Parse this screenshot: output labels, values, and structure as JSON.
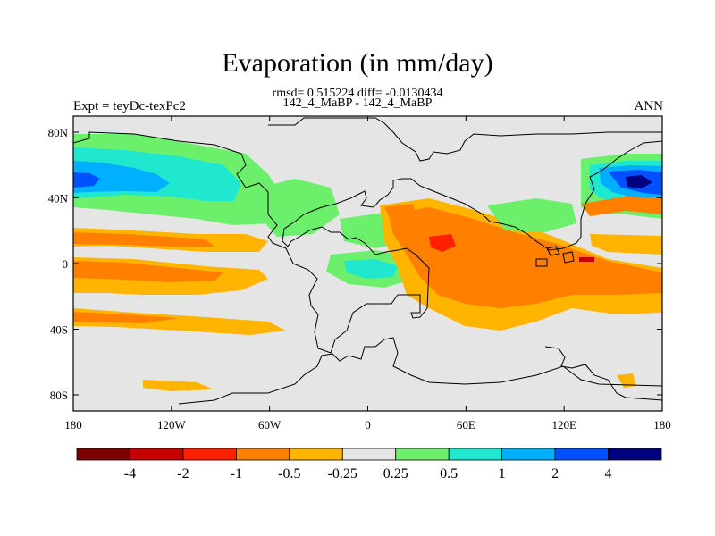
{
  "title": "Evaporation (in mm/day)",
  "stats": "rmsd= 0.515224 diff= -0.0130434",
  "subtitle": "142_4_MaBP - 142_4_MaBP",
  "left_label": "Expt = teyDc-texPc2",
  "right_label": "ANN",
  "lat_ticks": [
    "80N",
    "40N",
    "0",
    "40S",
    "80S"
  ],
  "lon_ticks": [
    "180",
    "120W",
    "60W",
    "0",
    "60E",
    "120E",
    "180"
  ],
  "colorbar": {
    "colors": [
      "#7f0000",
      "#c80000",
      "#ff2000",
      "#ff7f00",
      "#ffb400",
      "#e5e5e5",
      "#6cf06c",
      "#20e8d0",
      "#00b0ff",
      "#0050ff",
      "#000080"
    ],
    "labels": [
      "-4",
      "-2",
      "-1",
      "-0.5",
      "-0.25",
      "0.25",
      "0.5",
      "1",
      "2",
      "4"
    ]
  }
}
